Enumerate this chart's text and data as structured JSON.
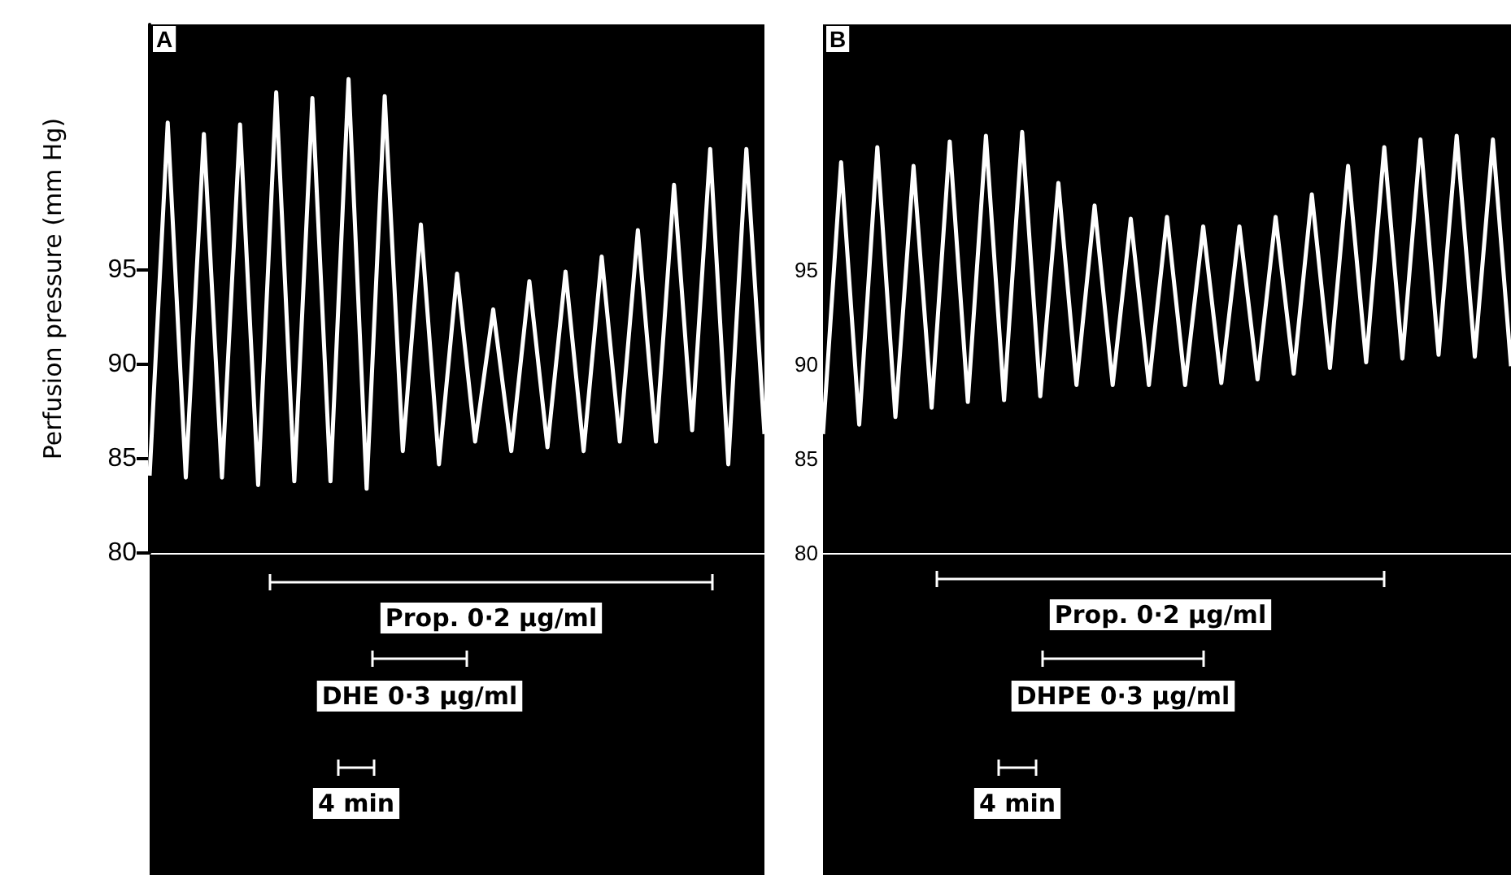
{
  "chart_data": [
    {
      "type": "line",
      "title": "A",
      "ylabel": "Perfusion pressure (mm Hg)",
      "ylim": [
        80,
        108
      ],
      "yticks": [
        80,
        85,
        90,
        95
      ],
      "categories": [
        null,
        null,
        null,
        null,
        null,
        null,
        null,
        null,
        null,
        null,
        null,
        null,
        null,
        null,
        null,
        null,
        null,
        null,
        null,
        null,
        null,
        null,
        null,
        null,
        null,
        null,
        null,
        null,
        null,
        null,
        null,
        null,
        null,
        null,
        null
      ],
      "series": [
        {
          "color": "#ffffff",
          "values": [
            84.1,
            102.8,
            84.0,
            102.2,
            84.0,
            102.7,
            83.6,
            104.4,
            83.8,
            104.1,
            83.8,
            105.1,
            83.4,
            104.2,
            85.4,
            97.4,
            84.7,
            94.8,
            85.9,
            92.9,
            85.4,
            94.4,
            85.6,
            94.9,
            85.4,
            95.7,
            85.9,
            97.1,
            85.9,
            99.5,
            86.5,
            101.4,
            84.7,
            101.4,
            86.3
          ]
        }
      ],
      "annotations": [
        "Prop. 0·2 μg/ml",
        "DHE 0·3 μg/ml",
        "4 min"
      ]
    },
    {
      "type": "line",
      "title": "B",
      "ylim": [
        80,
        108
      ],
      "yticks": [
        80,
        85,
        90,
        95
      ],
      "tick_labels": "y",
      "categories": [
        null,
        null,
        null,
        null,
        null,
        null,
        null,
        null,
        null,
        null,
        null,
        null,
        null,
        null,
        null,
        null,
        null,
        null,
        null,
        null,
        null,
        null,
        null,
        null,
        null,
        null,
        null,
        null,
        null,
        null,
        null,
        null,
        null,
        null,
        null,
        null,
        null,
        null,
        null
      ],
      "series": [
        {
          "color": "#ffffff",
          "values": [
            86.3,
            100.7,
            86.8,
            101.5,
            87.2,
            100.5,
            87.7,
            101.8,
            88.0,
            102.1,
            88.1,
            102.3,
            88.3,
            99.6,
            88.9,
            98.4,
            88.9,
            97.7,
            88.9,
            97.8,
            88.9,
            97.3,
            89.0,
            97.3,
            89.2,
            97.8,
            89.5,
            99.0,
            89.8,
            100.5,
            90.1,
            101.5,
            90.3,
            101.9,
            90.5,
            102.1,
            90.4,
            101.9,
            89.9
          ]
        }
      ],
      "annotations": [
        "Prop. 0·2 μg/ml",
        "DHPE 0·3 μg/ml",
        "4 min"
      ]
    }
  ]
}
